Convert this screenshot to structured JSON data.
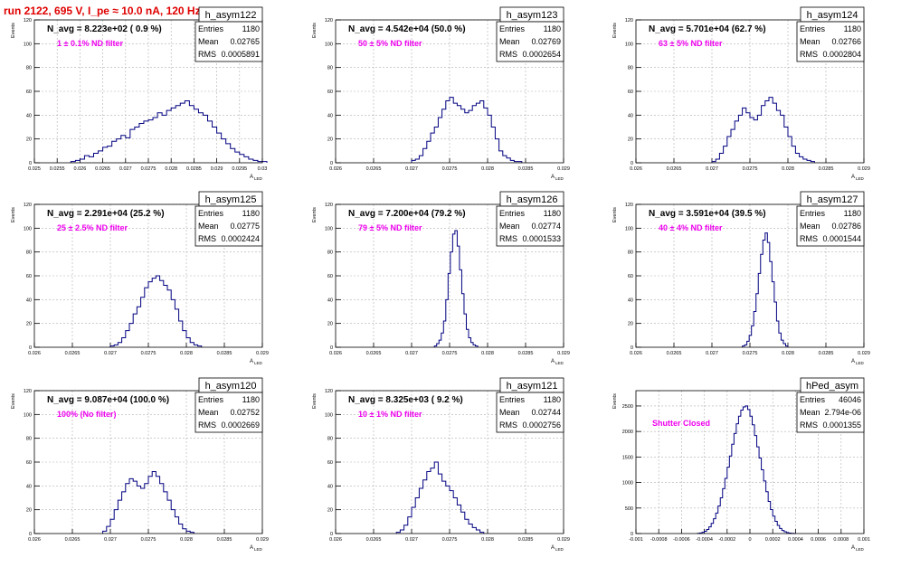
{
  "title": "run 2122,   695 V, I_pe ≈ 10.0 nA, 120 Hz",
  "colors": {
    "title": "#e00000",
    "annotation": "#ee00ee",
    "histogram": "#000080",
    "frame": "#000000",
    "grid": "#b0b0b0",
    "background": "#ffffff"
  },
  "stats_labels": {
    "entries": "Entries",
    "mean": "Mean",
    "rms": "RMS"
  },
  "y_axis_label": "Events",
  "x_axis_label": "A",
  "x_axis_subscript": "LED",
  "panels": [
    {
      "name": "h_asym122",
      "navg": "N_avg = 8.223e+02 ( 0.9 %)",
      "note": "1 ± 0.1% ND filter",
      "entries": "1180",
      "mean": "0.02765",
      "rms": "0.0005891",
      "x_ticks": [
        "0.025",
        "0.0255",
        "0.026",
        "0.0265",
        "0.027",
        "0.0275",
        "0.028",
        "0.0285",
        "0.029",
        "0.0295",
        "0.03"
      ],
      "y_ticks": [
        "0",
        "20",
        "40",
        "60",
        "80",
        "100",
        "120"
      ],
      "chart_data": {
        "type": "histogram",
        "xlim": [
          0.025,
          0.03
        ],
        "ylim": [
          0,
          120
        ],
        "grid": true,
        "bin_width": 0.0001,
        "x_start": 0.0258,
        "values": [
          1,
          2,
          3,
          6,
          5,
          8,
          10,
          13,
          14,
          18,
          20,
          23,
          21,
          28,
          30,
          33,
          35,
          36,
          38,
          42,
          40,
          44,
          46,
          48,
          50,
          52,
          48,
          45,
          42,
          40,
          35,
          30,
          25,
          20,
          16,
          12,
          9,
          7,
          5,
          3,
          2,
          1,
          1
        ]
      }
    },
    {
      "name": "h_asym123",
      "navg": "N_avg = 4.542e+04 (50.0 %)",
      "note": "50 ± 5% ND filter",
      "entries": "1180",
      "mean": "0.02769",
      "rms": "0.0002654",
      "x_ticks": [
        "0.026",
        "0.0265",
        "0.027",
        "0.0275",
        "0.028",
        "0.0285",
        "0.029"
      ],
      "y_ticks": [
        "0",
        "20",
        "40",
        "60",
        "80",
        "100",
        "120"
      ],
      "chart_data": {
        "type": "histogram",
        "xlim": [
          0.026,
          0.029
        ],
        "ylim": [
          0,
          120
        ],
        "grid": true,
        "bin_width": 5e-05,
        "x_start": 0.027,
        "values": [
          2,
          3,
          6,
          12,
          18,
          25,
          30,
          38,
          45,
          52,
          55,
          50,
          48,
          45,
          42,
          44,
          48,
          50,
          52,
          46,
          40,
          30,
          20,
          10,
          6,
          4,
          2,
          1,
          1
        ]
      }
    },
    {
      "name": "h_asym124",
      "navg": "N_avg = 5.701e+04 (62.7 %)",
      "note": "63 ± 5% ND filter",
      "entries": "1180",
      "mean": "0.02766",
      "rms": "0.0002804",
      "x_ticks": [
        "0.026",
        "0.0265",
        "0.027",
        "0.0275",
        "0.028",
        "0.0285",
        "0.029"
      ],
      "y_ticks": [
        "0",
        "20",
        "40",
        "60",
        "80",
        "100",
        "120"
      ],
      "chart_data": {
        "type": "histogram",
        "xlim": [
          0.026,
          0.029
        ],
        "ylim": [
          0,
          120
        ],
        "grid": true,
        "bin_width": 5e-05,
        "x_start": 0.027,
        "values": [
          1,
          3,
          8,
          14,
          22,
          28,
          35,
          40,
          46,
          42,
          38,
          36,
          40,
          48,
          52,
          55,
          50,
          44,
          40,
          30,
          22,
          14,
          8,
          5,
          3,
          2,
          1
        ]
      }
    },
    {
      "name": "h_asym125",
      "navg": "N_avg = 2.291e+04 (25.2 %)",
      "note": "25 ± 2.5% ND filter",
      "entries": "1180",
      "mean": "0.02775",
      "rms": "0.0002424",
      "x_ticks": [
        "0.026",
        "0.0265",
        "0.027",
        "0.0275",
        "0.028",
        "0.0285",
        "0.029"
      ],
      "y_ticks": [
        "0",
        "20",
        "40",
        "60",
        "80",
        "100",
        "120"
      ],
      "chart_data": {
        "type": "histogram",
        "xlim": [
          0.026,
          0.029
        ],
        "ylim": [
          0,
          120
        ],
        "grid": true,
        "bin_width": 5e-05,
        "x_start": 0.027,
        "values": [
          1,
          2,
          4,
          8,
          14,
          20,
          28,
          34,
          42,
          50,
          55,
          58,
          60,
          56,
          52,
          48,
          40,
          32,
          22,
          14,
          8,
          4,
          2,
          1
        ]
      }
    },
    {
      "name": "h_asym126",
      "navg": "N_avg = 7.200e+04 (79.2 %)",
      "note": "79 ± 5% ND filter",
      "entries": "1180",
      "mean": "0.02774",
      "rms": "0.0001533",
      "x_ticks": [
        "0.026",
        "0.0265",
        "0.027",
        "0.0275",
        "0.028",
        "0.0285",
        "0.029"
      ],
      "y_ticks": [
        "0",
        "20",
        "40",
        "60",
        "80",
        "100",
        "120"
      ],
      "chart_data": {
        "type": "histogram",
        "xlim": [
          0.026,
          0.029
        ],
        "ylim": [
          0,
          120
        ],
        "grid": true,
        "bin_width": 3e-05,
        "x_start": 0.0273,
        "values": [
          1,
          3,
          6,
          12,
          22,
          40,
          62,
          80,
          95,
          98,
          85,
          65,
          45,
          28,
          15,
          8,
          4,
          2,
          1
        ]
      }
    },
    {
      "name": "h_asym127",
      "navg": "N_avg = 3.591e+04 (39.5 %)",
      "note": "40 ± 4% ND filter",
      "entries": "1180",
      "mean": "0.02786",
      "rms": "0.0001544",
      "x_ticks": [
        "0.026",
        "0.0265",
        "0.027",
        "0.0275",
        "0.028",
        "0.0285",
        "0.029"
      ],
      "y_ticks": [
        "0",
        "20",
        "40",
        "60",
        "80",
        "100",
        "120"
      ],
      "chart_data": {
        "type": "histogram",
        "xlim": [
          0.026,
          0.029
        ],
        "ylim": [
          0,
          120
        ],
        "grid": true,
        "bin_width": 3e-05,
        "x_start": 0.0274,
        "values": [
          1,
          2,
          5,
          10,
          18,
          30,
          45,
          62,
          78,
          90,
          96,
          88,
          72,
          55,
          38,
          22,
          12,
          6,
          3,
          1
        ]
      }
    },
    {
      "name": "h_asym120",
      "navg": "N_avg = 9.087e+04 (100.0 %)",
      "note": "100% (No filter)",
      "entries": "1180",
      "mean": "0.02752",
      "rms": "0.0002669",
      "x_ticks": [
        "0.026",
        "0.0265",
        "0.027",
        "0.0275",
        "0.028",
        "0.0285",
        "0.029"
      ],
      "y_ticks": [
        "0",
        "20",
        "40",
        "60",
        "80",
        "100",
        "120"
      ],
      "chart_data": {
        "type": "histogram",
        "xlim": [
          0.026,
          0.029
        ],
        "ylim": [
          0,
          120
        ],
        "grid": true,
        "bin_width": 5e-05,
        "x_start": 0.0269,
        "values": [
          2,
          6,
          12,
          20,
          28,
          35,
          42,
          46,
          44,
          40,
          38,
          42,
          48,
          52,
          48,
          42,
          35,
          28,
          20,
          14,
          8,
          4,
          2,
          1
        ]
      }
    },
    {
      "name": "h_asym121",
      "navg": "N_avg = 8.325e+03 ( 9.2 %)",
      "note": "10 ± 1% ND filter",
      "entries": "1180",
      "mean": "0.02744",
      "rms": "0.0002756",
      "x_ticks": [
        "0.026",
        "0.0265",
        "0.027",
        "0.0275",
        "0.028",
        "0.0285",
        "0.029"
      ],
      "y_ticks": [
        "0",
        "20",
        "40",
        "60",
        "80",
        "100",
        "120"
      ],
      "chart_data": {
        "type": "histogram",
        "xlim": [
          0.026,
          0.029
        ],
        "ylim": [
          0,
          120
        ],
        "grid": true,
        "bin_width": 5e-05,
        "x_start": 0.0268,
        "values": [
          1,
          3,
          7,
          14,
          22,
          30,
          38,
          45,
          52,
          55,
          60,
          50,
          44,
          40,
          36,
          30,
          24,
          18,
          12,
          8,
          5,
          3,
          1
        ]
      }
    },
    {
      "name": "hPed_asym",
      "navg": "",
      "note": "Shutter Closed",
      "entries": "46046",
      "mean": "2.794e-06",
      "rms": "0.0001355",
      "x_ticks": [
        "-0.001",
        "-0.0008",
        "-0.0006",
        "-0.0004",
        "-0.0002",
        "0",
        "0.0002",
        "0.0004",
        "0.0006",
        "0.0008",
        "0.001"
      ],
      "y_ticks": [
        "0",
        "500",
        "1000",
        "1500",
        "2000",
        "2500"
      ],
      "chart_data": {
        "type": "histogram",
        "xlim": [
          -0.001,
          0.001
        ],
        "ylim": [
          0,
          2800
        ],
        "grid": true,
        "bin_width": 2e-05,
        "x_start": -0.00046,
        "values": [
          5,
          12,
          25,
          45,
          80,
          130,
          200,
          290,
          400,
          540,
          700,
          880,
          1080,
          1300,
          1520,
          1750,
          1960,
          2150,
          2300,
          2420,
          2480,
          2500,
          2430,
          2300,
          2130,
          1920,
          1700,
          1480,
          1250,
          1030,
          820,
          630,
          470,
          340,
          240,
          160,
          100,
          60,
          35,
          20,
          10,
          5,
          2
        ]
      }
    }
  ]
}
